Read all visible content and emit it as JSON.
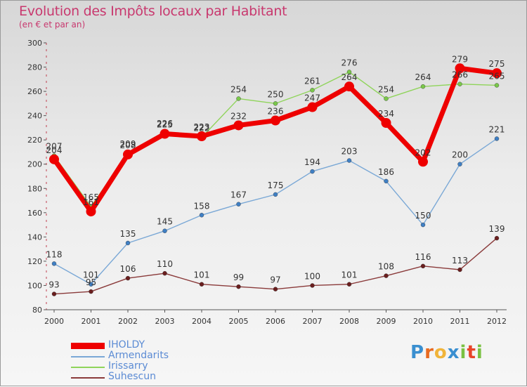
{
  "chart_data": {
    "type": "line",
    "title": "Evolution des Impôts locaux par Habitant",
    "subtitle": "(en € et par an)",
    "categories": [
      "2000",
      "2001",
      "2002",
      "2003",
      "2004",
      "2005",
      "2006",
      "2007",
      "2008",
      "2009",
      "2010",
      "2011",
      "2012"
    ],
    "ylim": [
      80,
      300
    ],
    "yticks": [
      80,
      100,
      120,
      140,
      160,
      180,
      200,
      220,
      240,
      260,
      280,
      300
    ],
    "grid": false,
    "legend_position": "bottom-left",
    "series": [
      {
        "name": "Irissarry",
        "color": "#8fd45a",
        "marker": "#7ac84a",
        "values": [
          207,
          165,
          209,
          226,
          222,
          254,
          250,
          261,
          276,
          254,
          264,
          266,
          265
        ]
      },
      {
        "name": "Armendarits",
        "color": "#7aa8d6",
        "marker": "#3f7fc4",
        "values": [
          118,
          101,
          135,
          145,
          158,
          167,
          175,
          194,
          203,
          186,
          150,
          200,
          221
        ]
      },
      {
        "name": "Suhescun",
        "color": "#8a3a3a",
        "marker": "#6a1e1e",
        "values": [
          93,
          95,
          106,
          110,
          101,
          99,
          97,
          100,
          101,
          108,
          116,
          113,
          139
        ]
      },
      {
        "name": "IHOLDY",
        "color": "#ee0000",
        "marker": "#ee0000",
        "values": [
          204,
          161,
          208,
          225,
          223,
          232,
          236,
          247,
          264,
          234,
          202,
          279,
          275
        ]
      }
    ],
    "legend_order": [
      "IHOLDY",
      "Armendarits",
      "Irissarry",
      "Suhescun"
    ]
  },
  "logo": {
    "letters": [
      "P",
      "r",
      "o",
      "x",
      "i",
      "t",
      "i"
    ],
    "colors": [
      "#3a8fd0",
      "#e86a1f",
      "#f0b43a",
      "#3a8fd0",
      "#7ac142",
      "#e8452a",
      "#7ac142"
    ]
  }
}
